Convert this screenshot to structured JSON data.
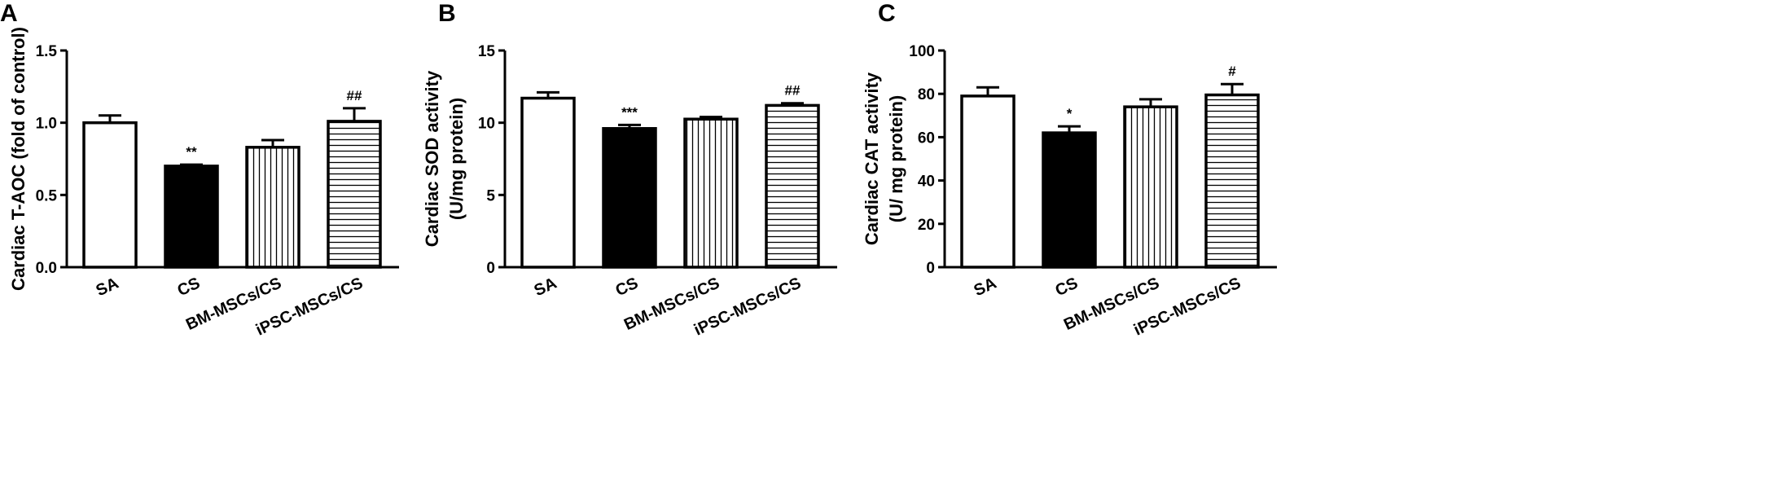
{
  "chart_data": [
    {
      "type": "bar",
      "panel": "A",
      "ylabel": [
        "Cardiac T-AOC (fold of control)"
      ],
      "categories": [
        "SA",
        "CS",
        "BM-MSCs/CS",
        "iPSC-MSCs/CS"
      ],
      "values": [
        1.0,
        0.7,
        0.83,
        1.01
      ],
      "errors": [
        0.05,
        0.01,
        0.05,
        0.09
      ],
      "annotations": [
        null,
        "**",
        null,
        "##"
      ],
      "bar_styles": [
        "open",
        "solid",
        "vertical",
        "horizontal"
      ],
      "ylim": [
        0,
        1.5
      ],
      "yticks": [
        {
          "value": 0,
          "label": "0.0"
        },
        0.5,
        {
          "value": 1,
          "label": "1.0"
        },
        1.5
      ]
    },
    {
      "type": "bar",
      "panel": "B",
      "ylabel": [
        "Cardiac SOD activity",
        "(U/mg protein)"
      ],
      "categories": [
        "SA",
        "CS",
        "BM-MSCs/CS",
        "iPSC-MSCs/CS"
      ],
      "values": [
        11.7,
        9.6,
        10.25,
        11.2
      ],
      "errors": [
        0.4,
        0.25,
        0.15,
        0.15
      ],
      "annotations": [
        null,
        "***",
        null,
        "##"
      ],
      "bar_styles": [
        "open",
        "solid",
        "vertical",
        "horizontal"
      ],
      "ylim": [
        0,
        15
      ],
      "yticks": [
        0,
        5,
        10,
        15
      ]
    },
    {
      "type": "bar",
      "panel": "C",
      "ylabel": [
        "Cardiac CAT activity",
        "(U/ mg protein)"
      ],
      "categories": [
        "SA",
        "CS",
        "BM-MSCs/CS",
        "iPSC-MSCs/CS"
      ],
      "values": [
        79,
        62,
        74,
        79.5
      ],
      "errors": [
        4,
        3,
        3.5,
        5
      ],
      "annotations": [
        null,
        "*",
        null,
        "#"
      ],
      "bar_styles": [
        "open",
        "solid",
        "vertical",
        "horizontal"
      ],
      "ylim": [
        0,
        100
      ],
      "yticks": [
        0,
        20,
        40,
        60,
        80,
        100
      ]
    }
  ]
}
